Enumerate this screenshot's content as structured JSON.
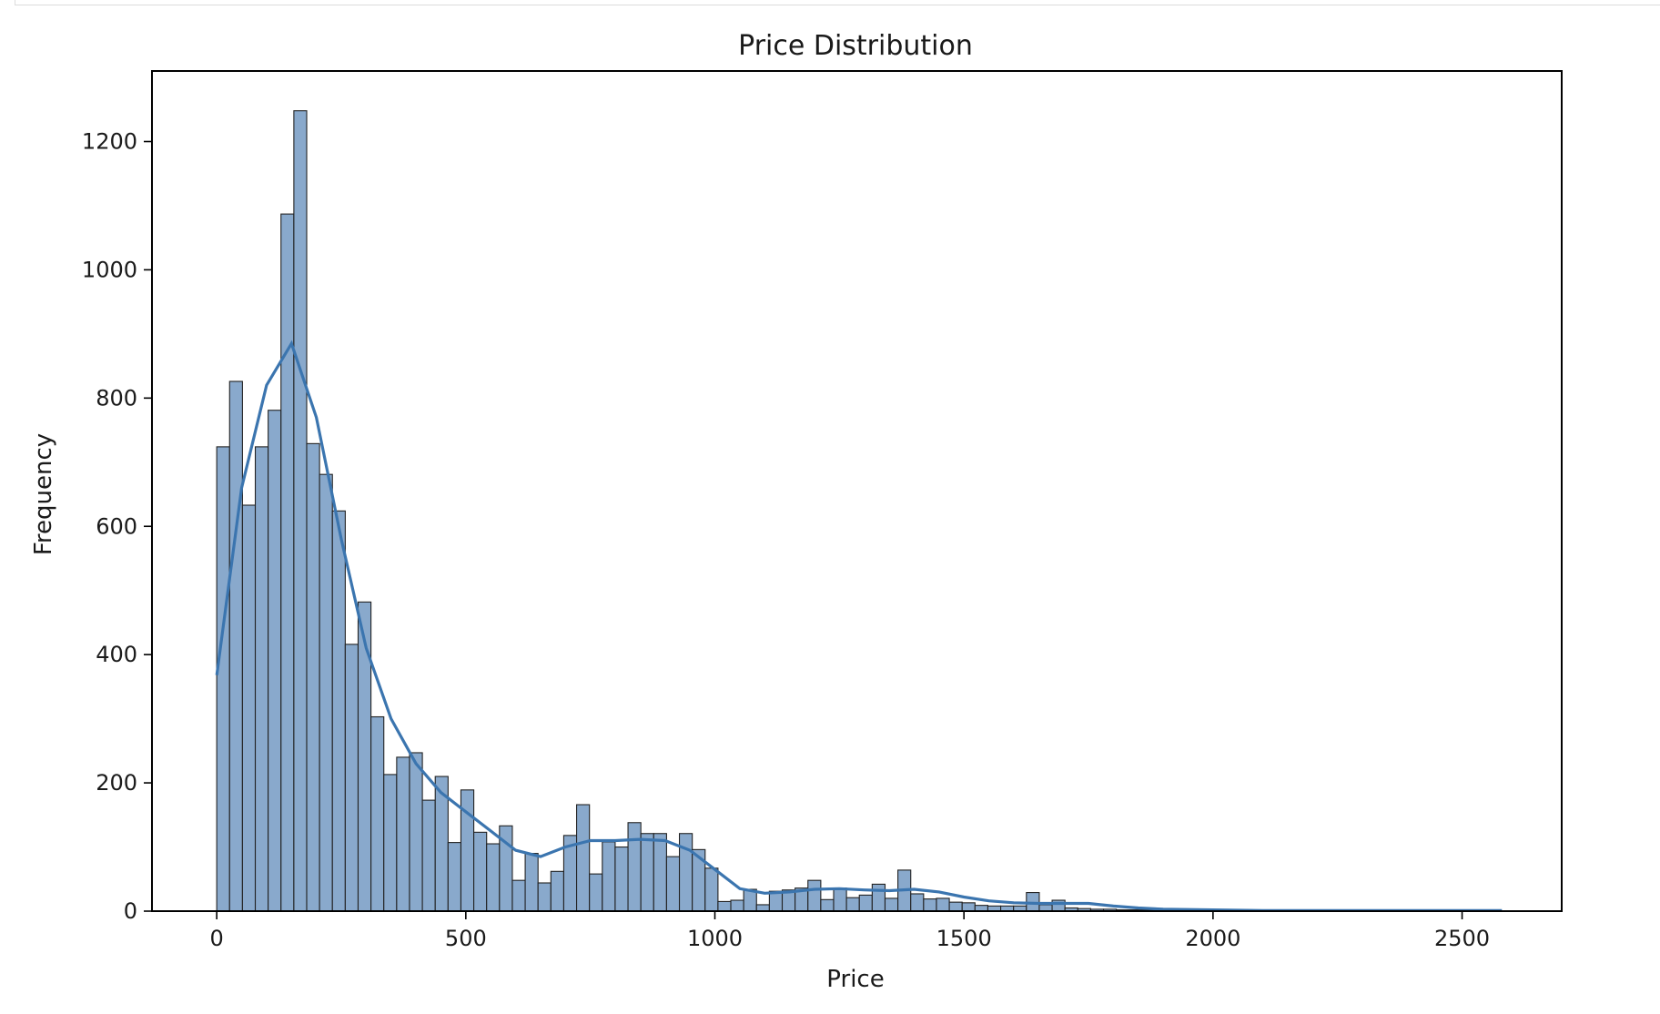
{
  "chart_data": {
    "type": "bar",
    "title": "Price Distribution",
    "xlabel": "Price",
    "ylabel": "Frequency",
    "xlim": [
      -130,
      2700
    ],
    "ylim": [
      0,
      1310
    ],
    "xticks": [
      0,
      500,
      1000,
      1500,
      2000,
      2500
    ],
    "yticks": [
      0,
      200,
      400,
      600,
      800,
      1000,
      1200
    ],
    "grid": false,
    "bin_start": 0,
    "bin_width": 25.8,
    "histogram_values": [
      724,
      826,
      633,
      724,
      781,
      1087,
      1248,
      729,
      681,
      624,
      416,
      482,
      303,
      213,
      240,
      247,
      173,
      210,
      107,
      189,
      123,
      105,
      133,
      48,
      90,
      44,
      62,
      118,
      166,
      58,
      108,
      100,
      138,
      121,
      121,
      85,
      121,
      96,
      67,
      15,
      17,
      34,
      10,
      31,
      33,
      36,
      48,
      18,
      36,
      21,
      25,
      42,
      20,
      64,
      27,
      19,
      20,
      14,
      13,
      9,
      8,
      8,
      8,
      29,
      10,
      17,
      5,
      4,
      3,
      3,
      2,
      2,
      2,
      2,
      1,
      1,
      1,
      1,
      1,
      1,
      1,
      1,
      1,
      1,
      1,
      1,
      1,
      1,
      1,
      1,
      1,
      1,
      1
    ],
    "kde_line": {
      "x": [
        0,
        50,
        100,
        150,
        200,
        250,
        300,
        350,
        400,
        450,
        500,
        550,
        600,
        650,
        700,
        750,
        800,
        850,
        900,
        950,
        1000,
        1050,
        1100,
        1150,
        1200,
        1250,
        1300,
        1350,
        1400,
        1450,
        1500,
        1550,
        1600,
        1650,
        1700,
        1750,
        1800,
        1850,
        1900,
        2000,
        2100,
        2200,
        2300,
        2400,
        2500,
        2580
      ],
      "y": [
        368,
        660,
        820,
        885,
        770,
        580,
        410,
        300,
        230,
        185,
        155,
        125,
        95,
        85,
        100,
        110,
        110,
        112,
        110,
        95,
        65,
        35,
        28,
        30,
        34,
        35,
        33,
        32,
        34,
        30,
        22,
        16,
        13,
        12,
        12,
        12,
        8,
        5,
        3,
        2,
        1,
        1,
        1,
        1,
        1,
        1
      ]
    },
    "colors": {
      "bar_fill": "#89a9cc",
      "bar_edge": "#222222",
      "kde_line": "#3b75af",
      "axes": "#000000"
    }
  }
}
